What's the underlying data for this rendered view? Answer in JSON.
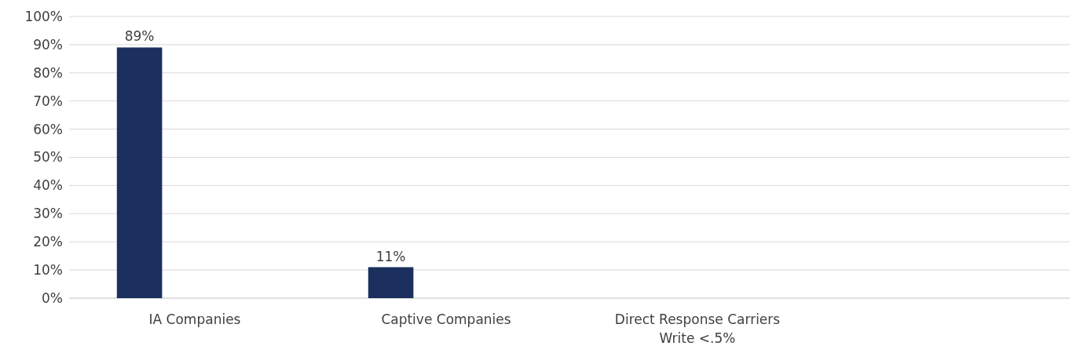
{
  "chart_data": {
    "type": "bar",
    "categories": [
      "IA Companies",
      "Captive Companies",
      "Direct Response Carriers\nWrite <.5%",
      null
    ],
    "values": [
      89,
      11,
      null,
      null
    ],
    "value_labels": [
      "89%",
      "11%",
      null,
      null
    ],
    "color": "#1b305e",
    "ylim": [
      0,
      100
    ],
    "yticks": [
      {
        "value": 0,
        "label": "0%"
      },
      {
        "value": 10,
        "label": "10%"
      },
      {
        "value": 20,
        "label": "20%"
      },
      {
        "value": 30,
        "label": "30%"
      },
      {
        "value": 40,
        "label": "40%"
      },
      {
        "value": 50,
        "label": "50%"
      },
      {
        "value": 60,
        "label": "60%"
      },
      {
        "value": 70,
        "label": "70%"
      },
      {
        "value": 80,
        "label": "80%"
      },
      {
        "value": 90,
        "label": "90%"
      },
      {
        "value": 100,
        "label": "100%"
      }
    ],
    "grid": "y"
  }
}
